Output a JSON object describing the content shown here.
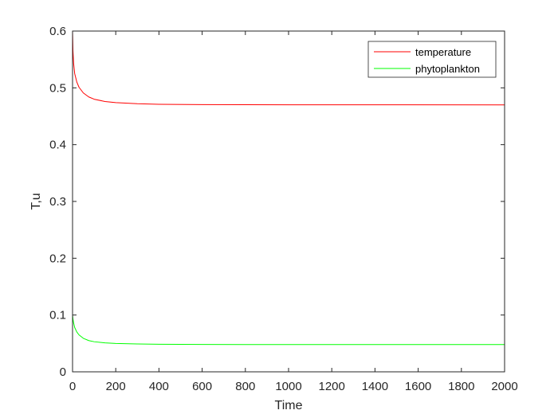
{
  "chart_data": {
    "type": "line",
    "title": "",
    "xlabel": "Time",
    "ylabel": "T,u",
    "xlim": [
      0,
      2000
    ],
    "ylim": [
      0,
      0.6
    ],
    "xticks": [
      0,
      200,
      400,
      600,
      800,
      1000,
      1200,
      1400,
      1600,
      1800,
      2000
    ],
    "yticks": [
      0,
      0.1,
      0.2,
      0.3,
      0.4,
      0.5,
      0.6
    ],
    "xtick_labels": [
      "0",
      "200",
      "400",
      "600",
      "800",
      "1000",
      "1200",
      "1400",
      "1600",
      "1800",
      "2000"
    ],
    "ytick_labels": [
      "0",
      "0.1",
      "0.2",
      "0.3",
      "0.4",
      "0.5",
      "0.6"
    ],
    "grid": false,
    "legend_position": "top-right",
    "series": [
      {
        "name": "temperature",
        "color": "#ff0000",
        "x": [
          0,
          2,
          5,
          10,
          20,
          30,
          50,
          75,
          100,
          150,
          200,
          300,
          400,
          600,
          800,
          1000,
          1500,
          2000
        ],
        "y": [
          0.6,
          0.565,
          0.543,
          0.525,
          0.51,
          0.501,
          0.491,
          0.484,
          0.48,
          0.476,
          0.474,
          0.472,
          0.471,
          0.4705,
          0.4703,
          0.4702,
          0.4701,
          0.47
        ]
      },
      {
        "name": "phytoplankton",
        "color": "#00ff00",
        "x": [
          0,
          2,
          5,
          10,
          20,
          30,
          50,
          75,
          100,
          150,
          200,
          300,
          400,
          600,
          800,
          1000,
          1500,
          2000
        ],
        "y": [
          0.1,
          0.093,
          0.086,
          0.078,
          0.07,
          0.065,
          0.059,
          0.055,
          0.053,
          0.051,
          0.05,
          0.049,
          0.0485,
          0.0482,
          0.0481,
          0.048,
          0.048,
          0.048
        ]
      }
    ]
  }
}
